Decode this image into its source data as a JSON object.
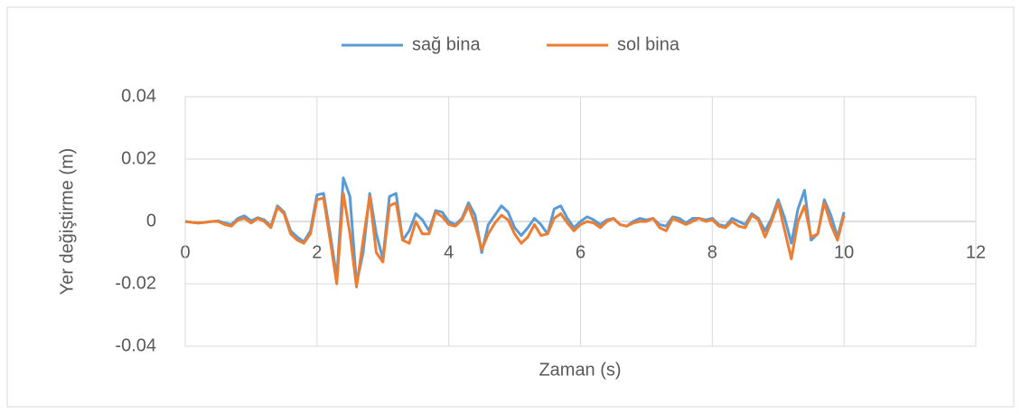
{
  "chart_data": {
    "type": "line",
    "xlabel": "Zaman (s)",
    "ylabel": "Yer değiştirme (m)",
    "x": [
      0,
      0.1,
      0.2,
      0.3,
      0.4,
      0.5,
      0.6,
      0.7,
      0.8,
      0.9,
      1,
      1.1,
      1.2,
      1.3,
      1.4,
      1.5,
      1.6,
      1.7,
      1.8,
      1.9,
      2,
      2.1,
      2.2,
      2.3,
      2.4,
      2.5,
      2.6,
      2.7,
      2.8,
      2.9,
      3,
      3.1,
      3.2,
      3.3,
      3.4,
      3.5,
      3.6,
      3.7,
      3.8,
      3.9,
      4,
      4.1,
      4.2,
      4.3,
      4.4,
      4.5,
      4.6,
      4.7,
      4.8,
      4.9,
      5,
      5.1,
      5.2,
      5.3,
      5.4,
      5.5,
      5.6,
      5.7,
      5.8,
      5.9,
      6,
      6.1,
      6.2,
      6.3,
      6.4,
      6.5,
      6.6,
      6.7,
      6.8,
      6.9,
      7,
      7.1,
      7.2,
      7.3,
      7.4,
      7.5,
      7.6,
      7.7,
      7.8,
      7.9,
      8,
      8.1,
      8.2,
      8.3,
      8.4,
      8.5,
      8.6,
      8.7,
      8.8,
      8.9,
      9,
      9.1,
      9.2,
      9.3,
      9.4,
      9.5,
      9.6,
      9.7,
      9.8,
      9.9,
      10
    ],
    "series": [
      {
        "name": "sağ bina",
        "color": "#5b9bd5",
        "values": [
          0,
          -0.0003,
          -0.0005,
          -0.0003,
          0,
          0.0002,
          -0.0005,
          -0.001,
          0.001,
          0.0018,
          0.0002,
          0.0012,
          0.0005,
          -0.0015,
          0.005,
          0.003,
          -0.003,
          -0.005,
          -0.0065,
          -0.003,
          0.0085,
          0.009,
          -0.004,
          -0.018,
          0.014,
          0.008,
          -0.02,
          -0.01,
          0.009,
          -0.004,
          -0.012,
          0.008,
          0.009,
          -0.006,
          -0.003,
          0.0025,
          0.0005,
          -0.003,
          0.0035,
          0.003,
          0,
          -0.001,
          0.001,
          0.006,
          0.002,
          -0.01,
          -0.001,
          0.002,
          0.005,
          0.003,
          -0.002,
          -0.0045,
          -0.002,
          0.001,
          -0.001,
          -0.004,
          0.004,
          0.005,
          0.001,
          -0.002,
          0,
          0.0015,
          0.0005,
          -0.001,
          0.0005,
          0.001,
          -0.001,
          -0.0015,
          0,
          0.001,
          0.0005,
          0.001,
          -0.001,
          -0.0015,
          0.0015,
          0.001,
          -0.0005,
          0.001,
          0.001,
          0.0005,
          0.001,
          -0.001,
          -0.0015,
          0.001,
          0,
          -0.001,
          0.0025,
          0.001,
          -0.003,
          0.001,
          0.007,
          0.001,
          -0.007,
          0.004,
          0.01,
          -0.006,
          -0.004,
          0.007,
          0.002,
          -0.005,
          0.003
        ]
      },
      {
        "name": "sol bina",
        "color": "#ed7d31",
        "values": [
          0,
          -0.0003,
          -0.0005,
          -0.0003,
          0,
          0,
          -0.001,
          -0.0015,
          0.0005,
          0.001,
          -0.0005,
          0.001,
          0,
          -0.002,
          0.0045,
          0.0025,
          -0.004,
          -0.006,
          -0.007,
          -0.004,
          0.007,
          0.0075,
          -0.006,
          -0.02,
          0.009,
          -0.004,
          -0.021,
          -0.006,
          0.008,
          -0.01,
          -0.013,
          0.005,
          0.006,
          -0.006,
          -0.007,
          0,
          -0.004,
          -0.004,
          0.003,
          0.0015,
          -0.001,
          -0.0015,
          0.0005,
          0.005,
          -0.001,
          -0.009,
          -0.004,
          -0.0005,
          0.002,
          0.0005,
          -0.004,
          -0.007,
          -0.005,
          -0.001,
          -0.0045,
          -0.004,
          0.001,
          0.0025,
          -0.0005,
          -0.003,
          -0.001,
          0,
          -0.0005,
          -0.002,
          0,
          0.001,
          -0.001,
          -0.0015,
          -0.0005,
          0,
          0,
          0.001,
          -0.002,
          -0.003,
          0.001,
          0,
          -0.001,
          0,
          0.001,
          0,
          0.0005,
          -0.0015,
          -0.002,
          0,
          -0.0015,
          -0.002,
          0.002,
          0.0005,
          -0.005,
          0,
          0.006,
          -0.003,
          -0.012,
          0,
          0.005,
          -0.005,
          -0.004,
          0.006,
          -0.001,
          -0.006,
          0.002
        ]
      }
    ],
    "xlim": [
      0,
      12
    ],
    "xticks": [
      0,
      2,
      4,
      6,
      8,
      10,
      12
    ],
    "ylim": [
      -0.04,
      0.04
    ],
    "yticks": [
      -0.04,
      -0.02,
      0,
      0.02,
      0.04
    ],
    "grid": true,
    "legend": "top"
  }
}
